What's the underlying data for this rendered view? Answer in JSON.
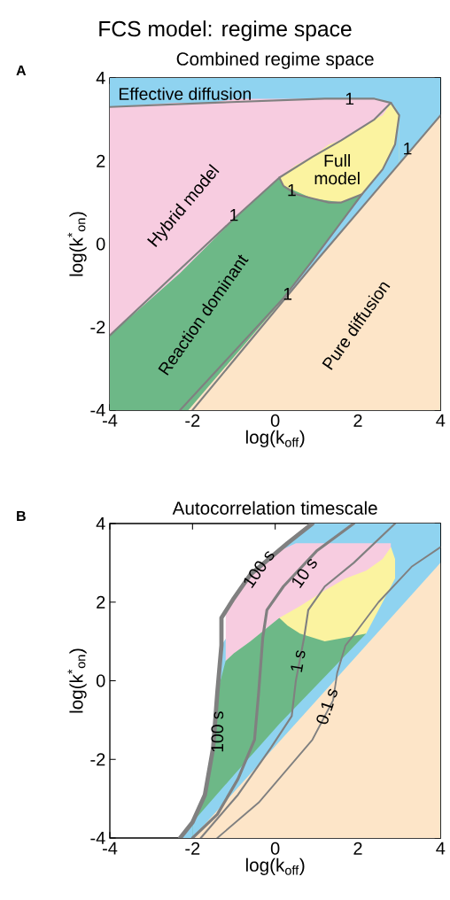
{
  "chart_data": [
    {
      "type": "area",
      "title": "FCS model: regime space",
      "subtitle": "Combined regime space",
      "xlabel": "log(k$_{off}$)",
      "ylabel": "log(k$^{*}$$_{on}$)",
      "xlim": [
        -4,
        4
      ],
      "ylim": [
        -4,
        4
      ],
      "xticks": [
        -4,
        -2,
        0,
        2,
        4
      ],
      "yticks": [
        -4,
        -2,
        0,
        2,
        4
      ],
      "annotations": [
        "A",
        {
          "text": "1",
          "x": 1.8,
          "y": 3.5
        },
        {
          "text": "1",
          "x": -1.0,
          "y": 0.7
        },
        {
          "text": "1",
          "x": 0.4,
          "y": 1.3
        },
        {
          "text": "1",
          "x": 0.3,
          "y": -1.2
        },
        {
          "text": "1",
          "x": 3.2,
          "y": 2.3
        }
      ],
      "series": [
        {
          "name": "Effective diffusion",
          "color": "#8fd3f0",
          "x": [
            -4,
            -4,
            4,
            4
          ],
          "values": [
            -4,
            4,
            4,
            -4
          ]
        },
        {
          "name": "Hybrid model",
          "color": "#f7cce0",
          "x": [
            -4,
            -4,
            -2.4,
            -1.6,
            -0.9,
            0.1,
            0.5,
            0.9,
            1.3,
            1.6,
            2.1,
            2.4,
            2.8,
            2.8
          ],
          "values": [
            -4,
            3.3,
            3.4,
            3.4,
            3.5,
            3.5,
            3.5,
            3.5,
            3.5,
            3.5,
            3.5,
            3.5,
            3.4,
            -4
          ]
        },
        {
          "name": "Full model",
          "color": "#fbf3a0",
          "x": [
            0.1,
            0.1,
            0.5,
            0.9,
            1.3,
            1.6,
            2.1,
            2.4,
            2.6,
            2.8,
            2.9,
            3.0,
            3.0
          ],
          "values": [
            -4,
            1.6,
            1.9,
            2.1,
            2.4,
            2.5,
            2.8,
            3.0,
            3.1,
            3.4,
            3.3,
            3.1,
            -4
          ]
        },
        {
          "name": "Reaction dominant",
          "color": "#6db887",
          "x": [
            -4,
            -4,
            -2.3,
            -1,
            0.1,
            0.2,
            0.9,
            1.6,
            2.1,
            2.1
          ],
          "values": [
            -4,
            -2.2,
            -0.7,
            0.6,
            1.6,
            1.4,
            1.1,
            1.0,
            1.2,
            -4
          ]
        },
        {
          "color": "#8fd3f0",
          "x": [
            0.2,
            0.2,
            0.9,
            2.1,
            2.6,
            2.9,
            3.0,
            3.0
          ],
          "values": [
            -4,
            -1.3,
            -0.4,
            1.2,
            1.8,
            2.4,
            3.1,
            -4
          ]
        },
        {
          "name": "Pure diffusion",
          "color": "#fde5c8",
          "x": [
            -2.1,
            4,
            4
          ],
          "values": [
            -4,
            3.1,
            -4
          ]
        },
        {
          "type": "line",
          "color": "#808080",
          "x": [
            -4,
            -1.6,
            1.2,
            2.4,
            2.8,
            3.0,
            2.9,
            2.6,
            2.1,
            0.9,
            0.2,
            -2.3
          ],
          "values": [
            3.3,
            3.4,
            3.5,
            3.5,
            3.4,
            3.1,
            2.4,
            1.8,
            1.2,
            -0.4,
            -1.3,
            -4
          ]
        },
        {
          "type": "line",
          "color": "#808080",
          "x": [
            -4,
            -2.4,
            -0.9,
            0.1,
            0.9,
            1.6,
            2.4,
            2.8
          ],
          "values": [
            -2.2,
            -0.7,
            0.7,
            1.6,
            2.1,
            2.5,
            3.0,
            3.4
          ]
        },
        {
          "type": "line",
          "color": "#808080",
          "x": [
            0.1,
            0.2,
            0.5,
            0.9,
            1.3,
            1.6,
            2.1
          ],
          "values": [
            1.6,
            1.4,
            1.2,
            1.1,
            1.0,
            1.0,
            1.2
          ]
        },
        {
          "type": "line",
          "color": "#808080",
          "x": [
            -2.0,
            1.0,
            4
          ],
          "values": [
            -4,
            -0.4,
            3.1
          ]
        }
      ]
    },
    {
      "type": "area",
      "title": "Autocorrelation timescale",
      "xlabel": "log(k$_{off}$)",
      "ylabel": "log(k$^{*}$$_{on}$)",
      "xlim": [
        -4,
        4
      ],
      "ylim": [
        -4,
        4
      ],
      "xticks": [
        -4,
        -2,
        0,
        2,
        4
      ],
      "yticks": [
        -4,
        -2,
        0,
        2,
        4
      ],
      "annotations": [
        "B",
        {
          "text": "100 s",
          "x": -1.4,
          "y": -1.3
        }
      ],
      "series": [
        {
          "color": "#8fd3f0",
          "x": [
            -2.3,
            -2.0,
            -1.7,
            -1.5,
            -1.4,
            -1.3,
            0.3,
            0.9,
            4,
            4
          ],
          "values": [
            -4,
            -3.6,
            -2.9,
            -1.7,
            -0.3,
            0.9,
            3.5,
            4,
            4,
            -4
          ]
        },
        {
          "color": "#f7cce0",
          "x": [
            -1.2,
            -1.2,
            -1.0,
            -0.6,
            0.1,
            0.5,
            1.0,
            1.5,
            2.0,
            2.5,
            2.8,
            2.8
          ],
          "values": [
            -4,
            1.7,
            2.1,
            2.7,
            3.3,
            3.5,
            3.5,
            3.5,
            3.5,
            3.5,
            3.5,
            -4
          ]
        },
        {
          "color": "#fbf3a0",
          "x": [
            0.1,
            0.1,
            0.6,
            1.2,
            1.7,
            2.2,
            2.6,
            2.8,
            2.9,
            2.9
          ],
          "values": [
            -4,
            1.6,
            1.9,
            2.3,
            2.6,
            2.8,
            3.1,
            3.4,
            3.1,
            -4
          ]
        },
        {
          "color": "#6db887",
          "x": [
            -2.0,
            -2.0,
            -1.7,
            -1.5,
            -1.4,
            -1.2,
            -1.0,
            -0.6,
            0.1,
            0.3,
            0.6,
            1.2,
            1.7,
            2.2,
            2.2
          ],
          "values": [
            -4,
            -3.6,
            -2.9,
            -1.7,
            -0.3,
            0.5,
            0.7,
            1.0,
            1.6,
            1.4,
            1.2,
            1.0,
            1.1,
            1.2,
            -4
          ]
        },
        {
          "color": "#8fd3f0",
          "x": [
            -2.0,
            -2.0,
            -1.0,
            0.1,
            1.2,
            2.2,
            2.6,
            2.9,
            2.9
          ],
          "values": [
            -4,
            -3.6,
            -2.4,
            -1.1,
            0.1,
            1.2,
            2.0,
            2.6,
            -4
          ]
        },
        {
          "color": "#fde5c8",
          "x": [
            -2.0,
            4,
            4
          ],
          "values": [
            -4,
            3.0,
            -4
          ]
        },
        {
          "type": "line",
          "name": "100 s",
          "color": "#808080",
          "x": [
            -2.3,
            -2.0,
            -1.7,
            -1.5,
            -1.4,
            -1.3,
            -1.3,
            -1.0,
            -0.6,
            0.3,
            0.9
          ],
          "values": [
            -4,
            -3.6,
            -2.9,
            -1.7,
            -0.3,
            0.9,
            1.6,
            2.1,
            2.7,
            3.5,
            4
          ]
        },
        {
          "type": "line",
          "name": "10 s",
          "color": "#808080",
          "x": [
            -2.0,
            -1.4,
            -0.9,
            -0.5,
            -0.4,
            -0.3,
            -0.2,
            0.2,
            1.0,
            1.9
          ],
          "values": [
            -4,
            -3.4,
            -2.5,
            -1.5,
            -0.3,
            1.1,
            1.8,
            2.4,
            3.3,
            4
          ]
        },
        {
          "type": "line",
          "name": "1 s",
          "color": "#808080",
          "x": [
            -1.8,
            -0.9,
            -0.1,
            0.4,
            0.5,
            0.7,
            0.8,
            1.2,
            1.9,
            2.9
          ],
          "values": [
            -4,
            -2.9,
            -1.7,
            -0.9,
            0.0,
            1.1,
            1.8,
            2.4,
            3.0,
            4
          ]
        },
        {
          "type": "line",
          "name": "0.1 s",
          "color": "#808080",
          "x": [
            -1.4,
            -0.4,
            0.9,
            1.4,
            1.5,
            1.7,
            2.0,
            2.5,
            3.3,
            4
          ],
          "values": [
            -4,
            -3.1,
            -1.5,
            -0.5,
            0.2,
            0.9,
            1.3,
            2.0,
            2.9,
            3.4
          ]
        }
      ]
    }
  ]
}
